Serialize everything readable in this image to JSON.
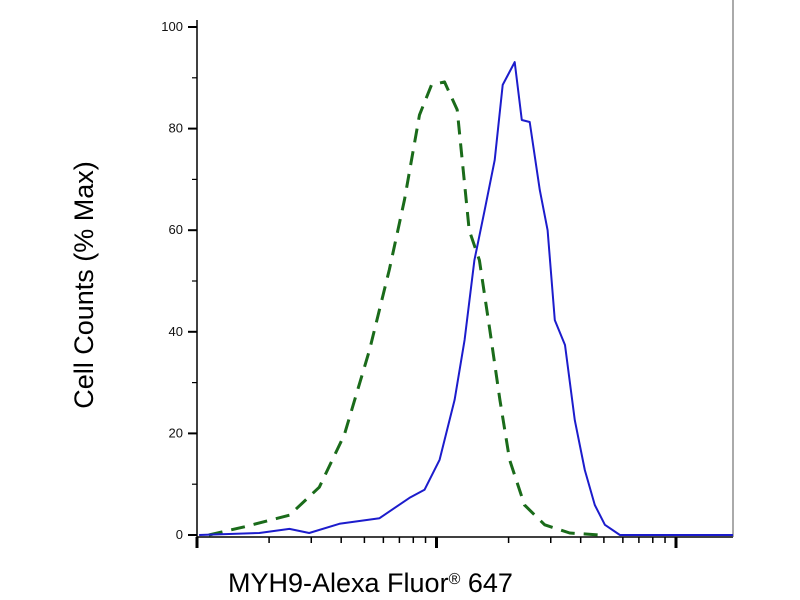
{
  "chart_data": {
    "type": "line",
    "title": "",
    "xlabel": "MYH9-Alexa Fluor® 647",
    "ylabel": "Cell Counts (% Max)",
    "x_scale": "log",
    "xlim": [
      1,
      173
    ],
    "ylim": [
      0,
      100
    ],
    "yticks": [
      0,
      20,
      40,
      60,
      80,
      100
    ],
    "grid": false,
    "series": [
      {
        "color": "#1a6b1a",
        "style": "dashed",
        "x": [
          1.12,
          1.57,
          2.43,
          3.24,
          4.12,
          5.25,
          6.35,
          7.35,
          8.49,
          9.53,
          10.8,
          12.2,
          13.7,
          15.1,
          16.7,
          18.4,
          20.2,
          23.3,
          28.3,
          36.0,
          48.1
        ],
        "y": [
          0,
          1.6,
          3.9,
          9.4,
          19.7,
          36.4,
          52.2,
          66,
          82.7,
          88.6,
          89.2,
          83.7,
          60,
          54.1,
          40.4,
          26.6,
          14.8,
          5.9,
          2,
          0.4,
          0
        ]
      },
      {
        "color": "#1c1ccc",
        "style": "solid",
        "x": [
          1.02,
          1.82,
          2.43,
          2.94,
          3.93,
          5.78,
          7.71,
          8.91,
          10.3,
          11.9,
          13.1,
          14.4,
          15.9,
          17.5,
          18.9,
          21.2,
          22.7,
          24.5,
          27.0,
          29.1,
          31.2,
          34.4,
          37.8,
          41.6,
          45.8,
          50.5,
          58.3,
          77.8,
          173
        ],
        "y": [
          0,
          0.4,
          1.2,
          0.4,
          2.2,
          3.3,
          7.3,
          8.9,
          14.8,
          26.6,
          38.4,
          54.1,
          64,
          73.8,
          88.6,
          93.1,
          81.7,
          81.3,
          67.9,
          60,
          42.3,
          37.4,
          22.6,
          12.8,
          5.9,
          2,
          0,
          0,
          0
        ]
      }
    ]
  }
}
